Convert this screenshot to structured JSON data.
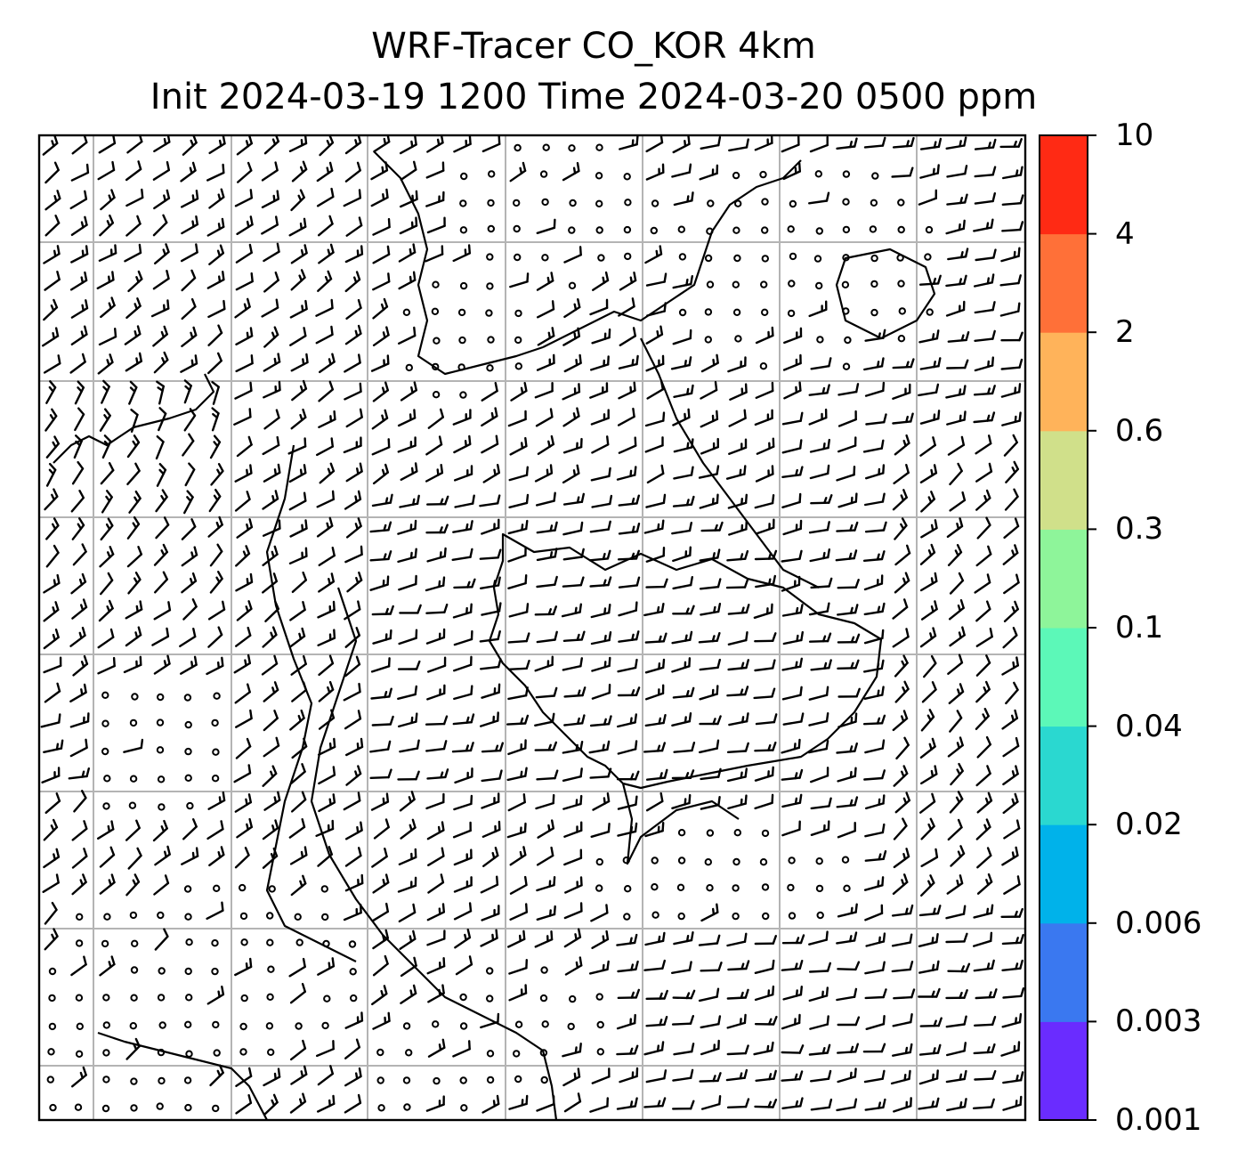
{
  "figure": {
    "title_line1": "WRF-Tracer CO_KOR 4km",
    "title_line2": "Init 2024-03-19 1200 Time 2024-03-20 0500 ppm"
  },
  "colorbar": {
    "levels": [
      "0.001",
      "0.003",
      "0.006",
      "0.02",
      "0.04",
      "0.1",
      "0.3",
      "0.6",
      "2",
      "4",
      "10"
    ],
    "colors": [
      "#6a2cff",
      "#3a78f0",
      "#00b2ea",
      "#2ad8d0",
      "#5cf8b8",
      "#8ef59a",
      "#d0e08a",
      "#ffb35a",
      "#ff7038",
      "#ff2a14"
    ]
  },
  "map": {
    "wind_barbs": "black",
    "coastlines": "black",
    "gridlines": "#b4b4b4",
    "calm_marker": "circle"
  }
}
